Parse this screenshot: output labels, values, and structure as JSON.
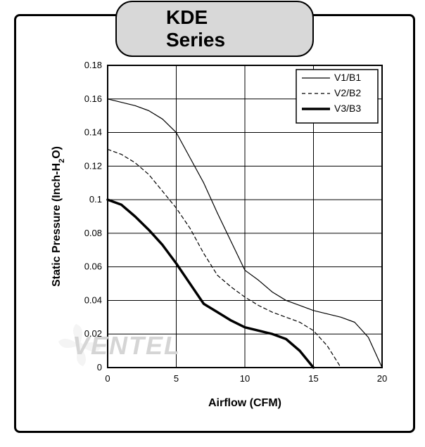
{
  "title": "KDE Series",
  "chart": {
    "type": "line",
    "xlabel": "Airflow (CFM)",
    "ylabel": "Static Pressure (Inch-H₂O)",
    "label_fontsize": 16,
    "label_fontweight": "bold",
    "tick_fontsize": 13,
    "background_color": "#ffffff",
    "plot_border_color": "#000000",
    "plot_border_width": 2,
    "grid_color": "#000000",
    "grid_width": 1,
    "xlim": [
      0,
      20
    ],
    "ylim": [
      0,
      0.18
    ],
    "xtick_step": 5,
    "xticks": [
      0,
      5,
      10,
      15,
      20
    ],
    "ytick_step": 0.02,
    "yticks": [
      0,
      0.02,
      0.04,
      0.06,
      0.08,
      0.1,
      0.12,
      0.14,
      0.16,
      0.18
    ],
    "legend": {
      "position": "top-right",
      "border_color": "#000000",
      "background": "#ffffff",
      "fontsize": 14,
      "items": [
        {
          "label": "V1/B1",
          "color": "#000000",
          "width": 1.2,
          "dash": "none"
        },
        {
          "label": "V2/B2",
          "color": "#000000",
          "width": 1.2,
          "dash": "5,4"
        },
        {
          "label": "V3/B3",
          "color": "#000000",
          "width": 3.5,
          "dash": "none"
        }
      ]
    },
    "series": [
      {
        "name": "V1/B1",
        "color": "#000000",
        "width": 1.2,
        "dash": "none",
        "x": [
          0,
          1,
          2,
          3,
          4,
          5,
          6,
          7,
          8,
          9,
          10,
          11,
          12,
          13,
          14,
          15,
          16,
          17,
          18,
          19,
          20
        ],
        "y": [
          0.16,
          0.158,
          0.156,
          0.153,
          0.148,
          0.14,
          0.125,
          0.11,
          0.092,
          0.075,
          0.058,
          0.052,
          0.045,
          0.04,
          0.037,
          0.034,
          0.032,
          0.03,
          0.027,
          0.018,
          0.0
        ]
      },
      {
        "name": "V2/B2",
        "color": "#000000",
        "width": 1.2,
        "dash": "5,4",
        "x": [
          0,
          1,
          2,
          3,
          4,
          5,
          6,
          7,
          8,
          9,
          10,
          11,
          12,
          13,
          14,
          15,
          16,
          17
        ],
        "y": [
          0.13,
          0.127,
          0.122,
          0.115,
          0.105,
          0.095,
          0.083,
          0.068,
          0.055,
          0.048,
          0.042,
          0.037,
          0.033,
          0.03,
          0.027,
          0.022,
          0.013,
          0.0
        ]
      },
      {
        "name": "V3/B3",
        "color": "#000000",
        "width": 3.5,
        "dash": "none",
        "x": [
          0,
          1,
          2,
          3,
          4,
          5,
          6,
          7,
          8,
          9,
          10,
          11,
          12,
          13,
          14,
          15
        ],
        "y": [
          0.1,
          0.097,
          0.09,
          0.082,
          0.073,
          0.062,
          0.05,
          0.038,
          0.033,
          0.028,
          0.024,
          0.022,
          0.02,
          0.017,
          0.01,
          0.0
        ]
      }
    ]
  },
  "watermark_text": "VENTEL"
}
